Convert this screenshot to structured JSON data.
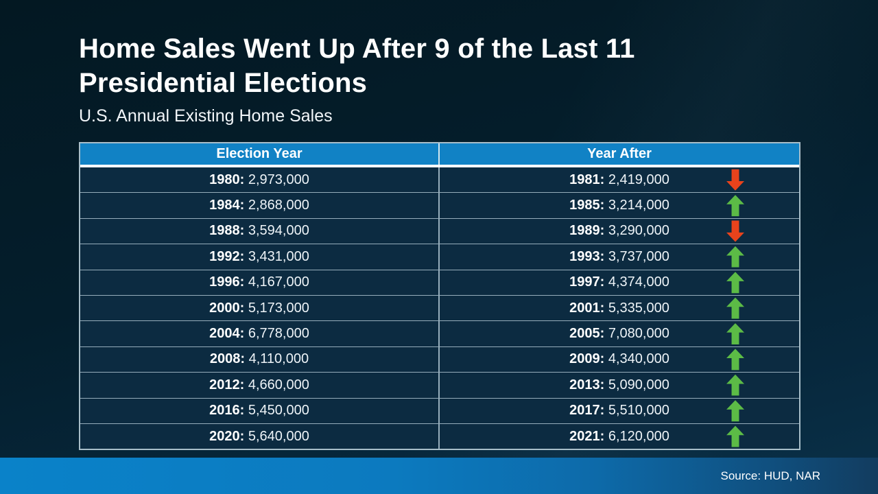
{
  "slide": {
    "title_line1": "Home Sales Went Up After 9 of the Last 11",
    "title_line2": "Presidential Elections",
    "subtitle": "U.S. Annual Existing Home Sales",
    "source": "Source: HUD, NAR"
  },
  "table": {
    "headers": [
      "Election Year",
      "Year After"
    ],
    "rows": [
      {
        "left_year": "1980:",
        "left_value": "2,973,000",
        "right_year": "1981:",
        "right_value": "2,419,000",
        "direction": "down"
      },
      {
        "left_year": "1984:",
        "left_value": "2,868,000",
        "right_year": "1985:",
        "right_value": "3,214,000",
        "direction": "up"
      },
      {
        "left_year": "1988:",
        "left_value": "3,594,000",
        "right_year": "1989:",
        "right_value": "3,290,000",
        "direction": "down"
      },
      {
        "left_year": "1992:",
        "left_value": "3,431,000",
        "right_year": "1993:",
        "right_value": "3,737,000",
        "direction": "up"
      },
      {
        "left_year": "1996:",
        "left_value": "4,167,000",
        "right_year": "1997:",
        "right_value": "4,374,000",
        "direction": "up"
      },
      {
        "left_year": "2000:",
        "left_value": "5,173,000",
        "right_year": "2001:",
        "right_value": "5,335,000",
        "direction": "up"
      },
      {
        "left_year": "2004:",
        "left_value": "6,778,000",
        "right_year": "2005:",
        "right_value": "7,080,000",
        "direction": "up"
      },
      {
        "left_year": "2008:",
        "left_value": "4,110,000",
        "right_year": "2009:",
        "right_value": "4,340,000",
        "direction": "up"
      },
      {
        "left_year": "2012:",
        "left_value": "4,660,000",
        "right_year": "2013:",
        "right_value": "5,090,000",
        "direction": "up"
      },
      {
        "left_year": "2016:",
        "left_value": "5,450,000",
        "right_year": "2017:",
        "right_value": "5,510,000",
        "direction": "up"
      },
      {
        "left_year": "2020:",
        "left_value": "5,640,000",
        "right_year": "2021:",
        "right_value": "6,120,000",
        "direction": "up"
      }
    ]
  },
  "colors": {
    "background_navy": "#041e2c",
    "header_blue": "#1182c5",
    "row_bg": "#0c2b41",
    "up_green": "#5cbb46",
    "down_red": "#e8431c",
    "footer_gradient_left": "#0a82c9",
    "footer_gradient_right": "#123c5f",
    "text_white": "#ffffff"
  },
  "chart_data": {
    "type": "table",
    "title": "Home Sales Went Up After 9 of the Last 11 Presidential Elections",
    "subtitle": "U.S. Annual Existing Home Sales",
    "columns": [
      "Election Year",
      "Year After"
    ],
    "rows": [
      {
        "election_year": 1980,
        "election_year_sales": 2973000,
        "year_after": 1981,
        "year_after_sales": 2419000,
        "change": "down"
      },
      {
        "election_year": 1984,
        "election_year_sales": 2868000,
        "year_after": 1985,
        "year_after_sales": 3214000,
        "change": "up"
      },
      {
        "election_year": 1988,
        "election_year_sales": 3594000,
        "year_after": 1989,
        "year_after_sales": 3290000,
        "change": "down"
      },
      {
        "election_year": 1992,
        "election_year_sales": 3431000,
        "year_after": 1993,
        "year_after_sales": 3737000,
        "change": "up"
      },
      {
        "election_year": 1996,
        "election_year_sales": 4167000,
        "year_after": 1997,
        "year_after_sales": 4374000,
        "change": "up"
      },
      {
        "election_year": 2000,
        "election_year_sales": 5173000,
        "year_after": 2001,
        "year_after_sales": 5335000,
        "change": "up"
      },
      {
        "election_year": 2004,
        "election_year_sales": 6778000,
        "year_after": 2005,
        "year_after_sales": 7080000,
        "change": "up"
      },
      {
        "election_year": 2008,
        "election_year_sales": 4110000,
        "year_after": 2009,
        "year_after_sales": 4340000,
        "change": "up"
      },
      {
        "election_year": 2012,
        "election_year_sales": 4660000,
        "year_after": 2013,
        "year_after_sales": 5090000,
        "change": "up"
      },
      {
        "election_year": 2016,
        "election_year_sales": 5450000,
        "year_after": 2017,
        "year_after_sales": 5510000,
        "change": "up"
      },
      {
        "election_year": 2020,
        "election_year_sales": 5640000,
        "year_after": 2021,
        "year_after_sales": 6120000,
        "change": "up"
      }
    ],
    "source": "HUD, NAR",
    "legend": "green up arrow = sales rose the year after the election; red down arrow = sales fell"
  }
}
